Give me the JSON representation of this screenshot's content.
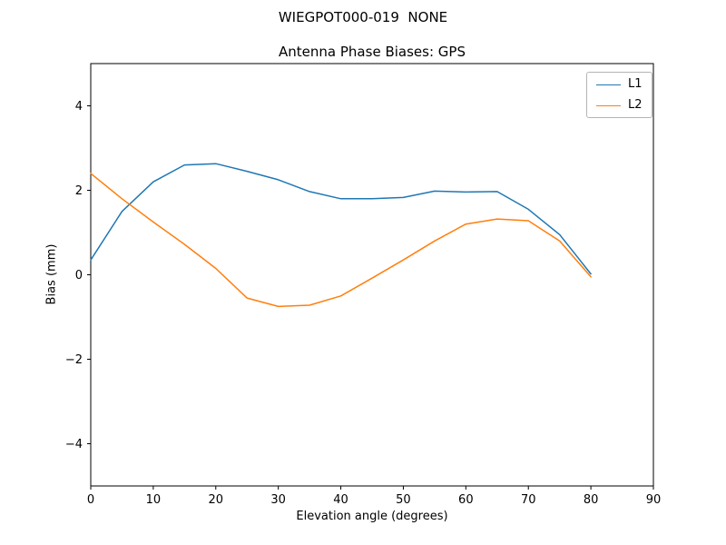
{
  "figure": {
    "suptitle": "WIEGPOT000-019  NONE"
  },
  "chart_data": {
    "type": "line",
    "suptitle": "WIEGPOT000-019  NONE",
    "title": "Antenna Phase Biases: GPS",
    "xlabel": "Elevation angle (degrees)",
    "ylabel": "Bias (mm)",
    "xlim": [
      0,
      90
    ],
    "ylim": [
      -5,
      5
    ],
    "xticks": [
      0,
      10,
      20,
      30,
      40,
      50,
      60,
      70,
      80,
      90
    ],
    "yticks": [
      -4,
      -2,
      0,
      2,
      4
    ],
    "grid": false,
    "legend_position": "upper right",
    "x": [
      0,
      5,
      10,
      15,
      20,
      25,
      30,
      35,
      40,
      45,
      50,
      55,
      60,
      65,
      70,
      75,
      80
    ],
    "series": [
      {
        "name": "L1",
        "color": "#1f77b4",
        "values": [
          0.35,
          1.5,
          2.2,
          2.6,
          2.63,
          2.45,
          2.25,
          1.97,
          1.8,
          1.8,
          1.83,
          1.98,
          1.96,
          1.97,
          1.55,
          0.95,
          0.02
        ]
      },
      {
        "name": "L2",
        "color": "#ff7f0e",
        "values": [
          2.4,
          1.8,
          1.25,
          0.72,
          0.15,
          -0.55,
          -0.75,
          -0.72,
          -0.5,
          -0.08,
          0.35,
          0.8,
          1.2,
          1.32,
          1.28,
          0.8,
          -0.05
        ]
      }
    ]
  }
}
